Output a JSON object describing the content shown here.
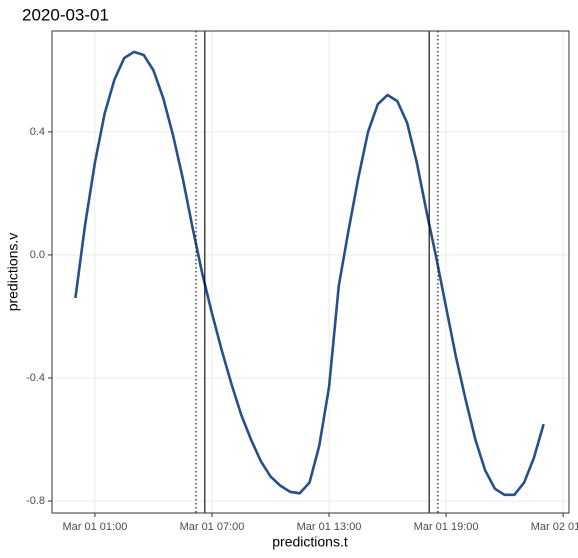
{
  "chart_data": {
    "type": "line",
    "title": "2020-03-01",
    "x_label": "predictions.t",
    "y_label": "predictions.v",
    "x": [
      "2020-03-01T00:00",
      "2020-03-01T00:30",
      "2020-03-01T01:00",
      "2020-03-01T01:30",
      "2020-03-01T02:00",
      "2020-03-01T02:30",
      "2020-03-01T03:00",
      "2020-03-01T03:30",
      "2020-03-01T04:00",
      "2020-03-01T04:30",
      "2020-03-01T05:00",
      "2020-03-01T05:30",
      "2020-03-01T06:00",
      "2020-03-01T06:30",
      "2020-03-01T07:00",
      "2020-03-01T07:30",
      "2020-03-01T08:00",
      "2020-03-01T08:30",
      "2020-03-01T09:00",
      "2020-03-01T09:30",
      "2020-03-01T10:00",
      "2020-03-01T10:30",
      "2020-03-01T11:00",
      "2020-03-01T11:30",
      "2020-03-01T12:00",
      "2020-03-01T12:30",
      "2020-03-01T13:00",
      "2020-03-01T13:30",
      "2020-03-01T14:00",
      "2020-03-01T14:30",
      "2020-03-01T15:00",
      "2020-03-01T15:30",
      "2020-03-01T16:00",
      "2020-03-01T16:30",
      "2020-03-01T17:00",
      "2020-03-01T17:30",
      "2020-03-01T18:00",
      "2020-03-01T18:30",
      "2020-03-01T19:00",
      "2020-03-01T19:30",
      "2020-03-01T20:00",
      "2020-03-01T20:30",
      "2020-03-01T21:00",
      "2020-03-01T21:30",
      "2020-03-01T22:00",
      "2020-03-01T22:30",
      "2020-03-01T23:00",
      "2020-03-01T23:30",
      "2020-03-02T00:00"
    ],
    "series": [
      {
        "name": "predictions.v",
        "color": "#27508a",
        "values": [
          -0.14,
          0.1,
          0.3,
          0.46,
          0.57,
          0.64,
          0.66,
          0.65,
          0.6,
          0.51,
          0.39,
          0.25,
          0.09,
          -0.06,
          -0.19,
          -0.31,
          -0.42,
          -0.52,
          -0.6,
          -0.67,
          -0.72,
          -0.75,
          -0.77,
          -0.775,
          -0.74,
          -0.62,
          -0.43,
          -0.1,
          0.08,
          0.25,
          0.4,
          0.49,
          0.52,
          0.5,
          0.43,
          0.3,
          0.14,
          -0.01,
          -0.17,
          -0.33,
          -0.47,
          -0.6,
          -0.7,
          -0.76,
          -0.78,
          -0.78,
          -0.74,
          -0.66,
          -0.55
        ]
      }
    ],
    "vlines": [
      {
        "x": "2020-03-01T06:11",
        "style": "dotted"
      },
      {
        "x": "2020-03-01T06:38",
        "style": "solid"
      },
      {
        "x": "2020-03-01T18:08",
        "style": "solid"
      },
      {
        "x": "2020-03-01T18:35",
        "style": "dotted"
      }
    ],
    "xlim": [
      "2020-02-29T22:48",
      "2020-03-02T01:18"
    ],
    "xticks": [
      {
        "value": "2020-03-01T01:00",
        "label": "Mar 01 01:00"
      },
      {
        "value": "2020-03-01T07:00",
        "label": "Mar 01 07:00"
      },
      {
        "value": "2020-03-01T13:00",
        "label": "Mar 01 13:00"
      },
      {
        "value": "2020-03-01T19:00",
        "label": "Mar 01 19:00"
      },
      {
        "value": "2020-03-02T01:00",
        "label": "Mar 02 01:00"
      }
    ],
    "ylim": [
      -0.839,
      0.728
    ],
    "yticks": [
      -0.8,
      -0.4,
      {
        "value": 0,
        "label": "0.0"
      },
      0.4
    ],
    "grid": true
  }
}
